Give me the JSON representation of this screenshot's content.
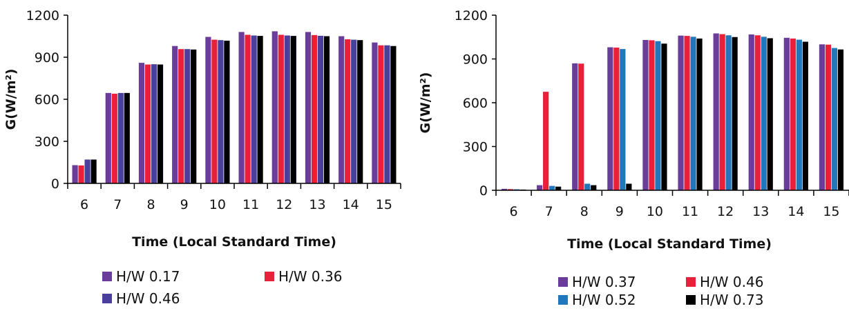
{
  "chart_data": [
    {
      "type": "bar",
      "title": "",
      "xlabel": "Time (Local Standard Time)",
      "ylabel": "G(W/m²)",
      "ylim": [
        0,
        1200
      ],
      "yticks": [
        "0",
        "300",
        "600",
        "900",
        "1200"
      ],
      "categories": [
        "6",
        "7",
        "8",
        "9",
        "10",
        "11",
        "12",
        "13",
        "14",
        "15"
      ],
      "grid": false,
      "legend_position": "bottom",
      "series": [
        {
          "name": "H/W 0.17",
          "color": "#6a3d9a",
          "values": [
            130,
            645,
            860,
            980,
            1045,
            1080,
            1085,
            1080,
            1050,
            1005
          ]
        },
        {
          "name": "H/W 0.36",
          "color": "#e8203a",
          "values": [
            128,
            640,
            848,
            958,
            1025,
            1060,
            1060,
            1058,
            1028,
            985
          ]
        },
        {
          "name": "H/W 0.46",
          "color": "#4a3f9c",
          "values": [
            170,
            645,
            850,
            958,
            1022,
            1055,
            1055,
            1053,
            1025,
            985
          ]
        },
        {
          "name": "",
          "color": "#000000",
          "values": [
            170,
            645,
            848,
            955,
            1018,
            1052,
            1052,
            1050,
            1022,
            980
          ]
        }
      ]
    },
    {
      "type": "bar",
      "title": "",
      "xlabel": "Time (Local Standard Time)",
      "ylabel": "G(W/m²)",
      "ylim": [
        0,
        1200
      ],
      "yticks": [
        "0",
        "300",
        "600",
        "900",
        "1200"
      ],
      "categories": [
        "6",
        "7",
        "8",
        "9",
        "10",
        "11",
        "12",
        "13",
        "14",
        "15"
      ],
      "grid": false,
      "legend_position": "bottom",
      "series": [
        {
          "name": "H/W 0.37",
          "color": "#6a3d9a",
          "values": [
            10,
            35,
            870,
            980,
            1030,
            1060,
            1075,
            1068,
            1045,
            1000
          ]
        },
        {
          "name": "H/W 0.46",
          "color": "#e8203a",
          "values": [
            8,
            675,
            868,
            978,
            1028,
            1058,
            1070,
            1062,
            1040,
            998
          ]
        },
        {
          "name": "H/W 0.52",
          "color": "#2277bb",
          "values": [
            7,
            30,
            45,
            968,
            1022,
            1052,
            1062,
            1052,
            1032,
            975
          ]
        },
        {
          "name": "H/W 0.73",
          "color": "#000000",
          "values": [
            5,
            25,
            35,
            45,
            1005,
            1040,
            1050,
            1042,
            1018,
            965
          ]
        }
      ]
    }
  ]
}
